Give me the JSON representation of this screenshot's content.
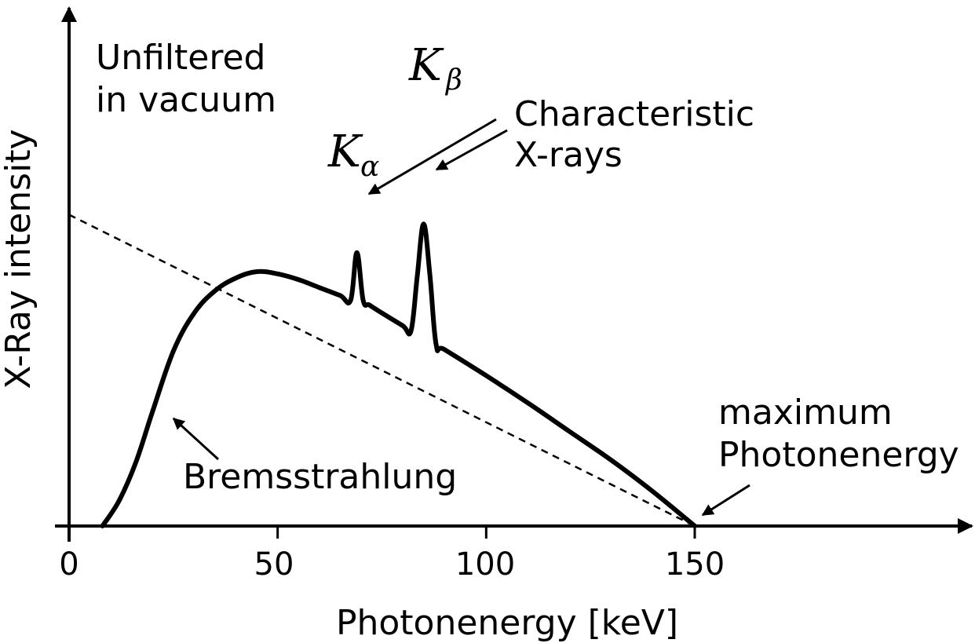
{
  "chart_data": {
    "type": "line",
    "title": "",
    "xlabel": "Photonenergy [keV]",
    "ylabel": "X-Ray intensity",
    "xlim": [
      0,
      210
    ],
    "ylim": [
      0,
      120
    ],
    "grid": false,
    "x_ticks": [
      "0",
      "50",
      "100",
      "150"
    ],
    "x_tick_values": [
      0,
      50,
      100,
      150
    ],
    "series": [
      {
        "x": [
          8,
          12,
          16,
          20,
          25,
          30,
          35,
          40,
          45,
          50,
          55,
          60,
          65,
          67.5,
          69,
          70.5,
          72,
          75,
          80,
          82,
          83.5,
          85,
          86.5,
          88,
          90,
          100,
          110,
          120,
          130,
          140,
          150
        ],
        "y": [
          0,
          8,
          20,
          36,
          55,
          67,
          74,
          78,
          80,
          79.3,
          77.5,
          75,
          72.5,
          71,
          86,
          71,
          69.5,
          67,
          63,
          61.5,
          79,
          95,
          79,
          57,
          55.5,
          47.3,
          38.7,
          29.7,
          20.7,
          10.8,
          0
        ]
      },
      {
        "x": [
          0,
          150
        ],
        "y": [
          97.9,
          0
        ],
        "style": "dashed"
      }
    ],
    "annotations": [
      {
        "text_line1": "Unfiltered",
        "text_line2": "in vacuum"
      },
      {
        "k_alpha_main": "K",
        "k_alpha_sub": "α",
        "k_beta_main": "K",
        "k_beta_sub": "β"
      },
      {
        "text_line1": "Characteristic",
        "text_line2": "X-rays"
      },
      {
        "text": "Bremsstrahlung"
      },
      {
        "text_line1": "maximum",
        "text_line2": "Photonenergy"
      }
    ]
  }
}
